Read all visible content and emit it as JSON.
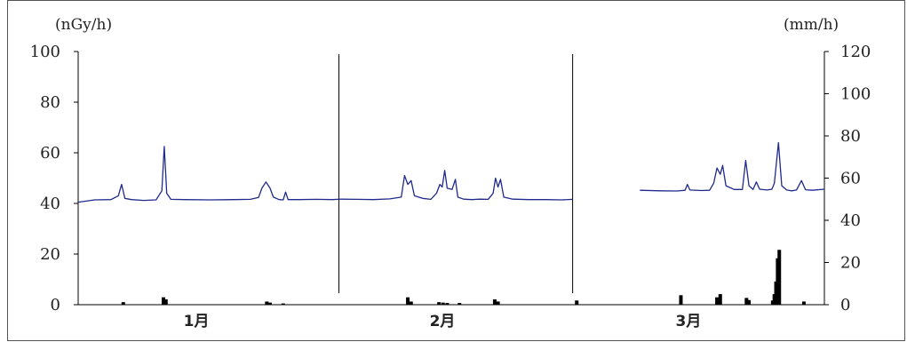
{
  "chart_data": {
    "type": "line",
    "title": "",
    "left_axis": {
      "unit_label": "(nGy/h)",
      "ylim": [
        0,
        100
      ],
      "ticks": [
        "0",
        "20",
        "40",
        "60",
        "80",
        "100"
      ]
    },
    "right_axis": {
      "unit_label": "(mm/h)",
      "ylim": [
        0,
        120
      ],
      "ticks": [
        "0",
        "20",
        "40",
        "60",
        "80",
        "100",
        "120"
      ]
    },
    "x_axis": {
      "months": [
        "1月",
        "2月",
        "3月"
      ],
      "days_per_month": [
        31,
        29,
        31
      ],
      "total_days": 91
    },
    "colors": {
      "dose_line": "#1f2a8c",
      "rain_bars": "#000000",
      "axis": "#000000",
      "separator": "#000000"
    },
    "series": [
      {
        "name": "",
        "axis": "left",
        "segments": [
          [
            [
              0,
              40.5
            ],
            [
              2,
              41.4
            ],
            [
              4,
              41.5
            ],
            [
              4.9,
              43
            ],
            [
              5.3,
              47.5
            ],
            [
              5.7,
              42
            ],
            [
              6.5,
              41.5
            ],
            [
              8,
              41.2
            ],
            [
              9.5,
              41.4
            ],
            [
              10.2,
              45
            ],
            [
              10.5,
              62.5
            ],
            [
              10.8,
              44
            ],
            [
              11.3,
              41.6
            ],
            [
              13,
              41.5
            ],
            [
              16,
              41.4
            ],
            [
              19,
              41.5
            ],
            [
              21,
              41.6
            ],
            [
              22,
              42.4
            ],
            [
              22.4,
              46
            ],
            [
              22.9,
              48.5
            ],
            [
              23.4,
              46
            ],
            [
              23.8,
              42.5
            ],
            [
              24.5,
              41.5
            ],
            [
              25,
              41.4
            ],
            [
              25.3,
              44.5
            ],
            [
              25.6,
              41.5
            ],
            [
              27,
              41.5
            ],
            [
              29,
              41.6
            ],
            [
              31,
              41.5
            ],
            [
              32,
              41.7
            ]
          ],
          [
            [
              32,
              41.7
            ],
            [
              34,
              41.6
            ],
            [
              36,
              41.5
            ],
            [
              38,
              41.8
            ],
            [
              39.4,
              42.5
            ],
            [
              39.8,
              51
            ],
            [
              40.2,
              47.5
            ],
            [
              40.6,
              49
            ],
            [
              41,
              43
            ],
            [
              42,
              42
            ],
            [
              43,
              41.6
            ],
            [
              43.7,
              44
            ],
            [
              44.1,
              47.5
            ],
            [
              44.4,
              46.5
            ],
            [
              44.7,
              53
            ],
            [
              45,
              46
            ],
            [
              45.6,
              45.5
            ],
            [
              46,
              49.5
            ],
            [
              46.3,
              42.5
            ],
            [
              47,
              41.7
            ],
            [
              48,
              41.5
            ],
            [
              49,
              41.7
            ],
            [
              50,
              41.6
            ],
            [
              50.6,
              44
            ],
            [
              50.9,
              50
            ],
            [
              51.2,
              46.5
            ],
            [
              51.5,
              49.5
            ],
            [
              51.9,
              42.5
            ],
            [
              53,
              41.7
            ],
            [
              55,
              41.5
            ],
            [
              57,
              41.5
            ],
            [
              59,
              41.4
            ],
            [
              60.3,
              41.6
            ]
          ],
          [
            [
              68.5,
              45.2
            ],
            [
              71,
              45
            ],
            [
              73,
              44.9
            ],
            [
              74,
              45.2
            ],
            [
              74.3,
              47.5
            ],
            [
              74.6,
              45.3
            ],
            [
              76,
              45.1
            ],
            [
              77,
              45.2
            ],
            [
              77.5,
              48
            ],
            [
              77.9,
              54
            ],
            [
              78.3,
              51.5
            ],
            [
              78.6,
              55
            ],
            [
              79,
              47
            ],
            [
              80,
              45.5
            ],
            [
              81,
              45.5
            ],
            [
              81.4,
              57
            ],
            [
              81.8,
              47
            ],
            [
              82.3,
              45.5
            ],
            [
              82.7,
              48.5
            ],
            [
              83.1,
              45.6
            ],
            [
              84,
              45.3
            ],
            [
              84.6,
              45.6
            ],
            [
              84.9,
              48
            ],
            [
              85.4,
              64
            ],
            [
              85.8,
              47
            ],
            [
              86.4,
              45.3
            ],
            [
              87,
              45
            ],
            [
              87.6,
              45.3
            ],
            [
              88.2,
              49
            ],
            [
              88.7,
              45.4
            ],
            [
              89.5,
              45.2
            ],
            [
              91,
              45.6
            ]
          ]
        ]
      },
      {
        "name": "",
        "axis": "right",
        "bars": [
          [
            5.5,
            1.2
          ],
          [
            10.4,
            3.5
          ],
          [
            10.7,
            2.5
          ],
          [
            23,
            1.5
          ],
          [
            23.4,
            1
          ],
          [
            25,
            0.6
          ],
          [
            40.2,
            3.5
          ],
          [
            40.6,
            1.5
          ],
          [
            44,
            1.2
          ],
          [
            44.5,
            1
          ],
          [
            45,
            0.8
          ],
          [
            46.5,
            0.8
          ],
          [
            50.8,
            2.5
          ],
          [
            51.2,
            1.5
          ],
          [
            60.8,
            2
          ],
          [
            73.5,
            4.5
          ],
          [
            77.9,
            3.5
          ],
          [
            78.3,
            5
          ],
          [
            81.5,
            3.2
          ],
          [
            81.8,
            2.2
          ],
          [
            84.7,
            2
          ],
          [
            84.9,
            5
          ],
          [
            85.1,
            11
          ],
          [
            85.3,
            22
          ],
          [
            85.5,
            26
          ],
          [
            88.5,
            1.5
          ]
        ]
      }
    ],
    "month_separators": [
      31.8,
      60.3
    ],
    "grid": false,
    "legend": "none"
  }
}
